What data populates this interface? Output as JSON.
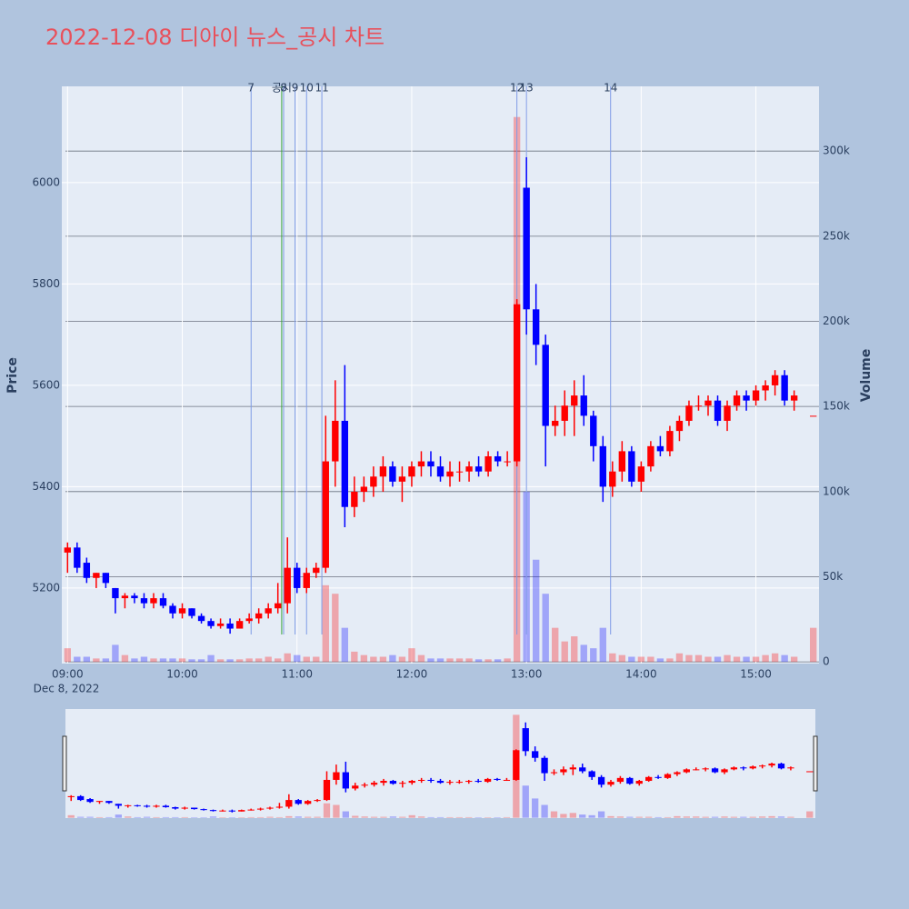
{
  "chart_data": {
    "type": "candlestick",
    "title": "2022-12-08 디아이 뉴스_공시 차트",
    "y_label": "Price",
    "y2_label": "Volume",
    "x_date_label": "Dec 8, 2022",
    "increasing_color": "#ff0000",
    "decreasing_color": "#0000ff",
    "x": [
      "2022-12-08 09:00",
      "2022-12-08 09:05",
      "2022-12-08 09:10",
      "2022-12-08 09:15",
      "2022-12-08 09:20",
      "2022-12-08 09:25",
      "2022-12-08 09:30",
      "2022-12-08 09:35",
      "2022-12-08 09:40",
      "2022-12-08 09:45",
      "2022-12-08 09:50",
      "2022-12-08 09:55",
      "2022-12-08 10:00",
      "2022-12-08 10:05",
      "2022-12-08 10:10",
      "2022-12-08 10:15",
      "2022-12-08 10:20",
      "2022-12-08 10:25",
      "2022-12-08 10:30",
      "2022-12-08 10:35",
      "2022-12-08 10:40",
      "2022-12-08 10:45",
      "2022-12-08 10:50",
      "2022-12-08 10:55",
      "2022-12-08 11:00",
      "2022-12-08 11:05",
      "2022-12-08 11:10",
      "2022-12-08 11:15",
      "2022-12-08 11:20",
      "2022-12-08 11:25",
      "2022-12-08 11:30",
      "2022-12-08 11:35",
      "2022-12-08 11:40",
      "2022-12-08 11:45",
      "2022-12-08 11:50",
      "2022-12-08 11:55",
      "2022-12-08 12:00",
      "2022-12-08 12:05",
      "2022-12-08 12:10",
      "2022-12-08 12:15",
      "2022-12-08 12:20",
      "2022-12-08 12:25",
      "2022-12-08 12:30",
      "2022-12-08 12:35",
      "2022-12-08 12:40",
      "2022-12-08 12:45",
      "2022-12-08 12:50",
      "2022-12-08 12:55",
      "2022-12-08 13:00",
      "2022-12-08 13:05",
      "2022-12-08 13:10",
      "2022-12-08 13:15",
      "2022-12-08 13:20",
      "2022-12-08 13:25",
      "2022-12-08 13:30",
      "2022-12-08 13:35",
      "2022-12-08 13:40",
      "2022-12-08 13:45",
      "2022-12-08 13:50",
      "2022-12-08 13:55",
      "2022-12-08 14:00",
      "2022-12-08 14:05",
      "2022-12-08 14:10",
      "2022-12-08 14:15",
      "2022-12-08 14:20",
      "2022-12-08 14:25",
      "2022-12-08 14:30",
      "2022-12-08 14:35",
      "2022-12-08 14:40",
      "2022-12-08 14:45",
      "2022-12-08 14:50",
      "2022-12-08 14:55",
      "2022-12-08 15:00",
      "2022-12-08 15:05",
      "2022-12-08 15:10",
      "2022-12-08 15:15",
      "2022-12-08 15:20",
      "2022-12-08 15:30"
    ],
    "open": [
      5270,
      5280,
      5250,
      5220,
      5230,
      5200,
      5180,
      5185,
      5180,
      5170,
      5180,
      5165,
      5150,
      5160,
      5145,
      5135,
      5125,
      5130,
      5120,
      5135,
      5140,
      5150,
      5160,
      5170,
      5240,
      5200,
      5230,
      5240,
      5450,
      5530,
      5360,
      5390,
      5400,
      5420,
      5440,
      5410,
      5420,
      5440,
      5450,
      5440,
      5420,
      5430,
      5430,
      5440,
      5430,
      5460,
      5450,
      5450,
      5990,
      5750,
      5680,
      5520,
      5530,
      5560,
      5580,
      5540,
      5480,
      5400,
      5430,
      5470,
      5410,
      5440,
      5480,
      5470,
      5510,
      5530,
      5560,
      5560,
      5570,
      5530,
      5560,
      5580,
      5570,
      5590,
      5600,
      5620,
      5570,
      5540
    ],
    "high": [
      5290,
      5290,
      5260,
      5230,
      5230,
      5200,
      5190,
      5190,
      5190,
      5190,
      5190,
      5170,
      5170,
      5160,
      5150,
      5140,
      5140,
      5140,
      5140,
      5150,
      5160,
      5170,
      5210,
      5300,
      5250,
      5240,
      5250,
      5540,
      5610,
      5640,
      5420,
      5420,
      5440,
      5460,
      5450,
      5440,
      5450,
      5470,
      5470,
      5460,
      5450,
      5450,
      5450,
      5460,
      5470,
      5470,
      5470,
      5770,
      6050,
      5800,
      5700,
      5560,
      5590,
      5610,
      5620,
      5550,
      5500,
      5450,
      5490,
      5480,
      5450,
      5490,
      5500,
      5520,
      5540,
      5570,
      5580,
      5580,
      5580,
      5570,
      5590,
      5590,
      5600,
      5610,
      5630,
      5630,
      5590,
      5540
    ],
    "low": [
      5230,
      5230,
      5210,
      5200,
      5200,
      5150,
      5160,
      5170,
      5160,
      5160,
      5160,
      5140,
      5140,
      5140,
      5130,
      5120,
      5120,
      5110,
      5120,
      5130,
      5130,
      5140,
      5150,
      5150,
      5190,
      5190,
      5220,
      5230,
      5400,
      5320,
      5340,
      5370,
      5380,
      5390,
      5400,
      5370,
      5400,
      5420,
      5420,
      5410,
      5400,
      5410,
      5410,
      5420,
      5420,
      5440,
      5440,
      5440,
      5700,
      5640,
      5440,
      5500,
      5500,
      5500,
      5520,
      5450,
      5370,
      5380,
      5410,
      5400,
      5390,
      5430,
      5460,
      5460,
      5490,
      5520,
      5550,
      5540,
      5520,
      5510,
      5550,
      5550,
      5560,
      5570,
      5580,
      5560,
      5550,
      5540
    ],
    "close": [
      5280,
      5240,
      5220,
      5230,
      5210,
      5180,
      5185,
      5180,
      5170,
      5180,
      5165,
      5150,
      5160,
      5145,
      5135,
      5125,
      5130,
      5120,
      5135,
      5140,
      5150,
      5160,
      5170,
      5240,
      5200,
      5230,
      5240,
      5450,
      5530,
      5360,
      5390,
      5400,
      5420,
      5440,
      5410,
      5420,
      5440,
      5450,
      5440,
      5420,
      5430,
      5430,
      5440,
      5430,
      5460,
      5450,
      5450,
      5760,
      5750,
      5680,
      5520,
      5530,
      5560,
      5580,
      5540,
      5480,
      5400,
      5430,
      5470,
      5410,
      5440,
      5480,
      5470,
      5510,
      5530,
      5560,
      5560,
      5570,
      5530,
      5560,
      5580,
      5570,
      5590,
      5600,
      5620,
      5570,
      5580,
      5540
    ],
    "volume": [
      8000,
      3000,
      3000,
      2000,
      2000,
      10000,
      4000,
      2000,
      3000,
      2000,
      2000,
      2000,
      2000,
      1500,
      1500,
      4000,
      1500,
      1500,
      1500,
      2000,
      2000,
      3000,
      2000,
      5000,
      4000,
      3000,
      3000,
      45000,
      40000,
      20000,
      6000,
      4000,
      3000,
      3000,
      4000,
      3000,
      8000,
      4000,
      2000,
      2000,
      2000,
      2000,
      2000,
      1500,
      1500,
      1500,
      2000,
      320000,
      100000,
      60000,
      40000,
      20000,
      12000,
      15000,
      10000,
      8000,
      20000,
      5000,
      4000,
      3000,
      3000,
      3000,
      2000,
      2000,
      5000,
      4000,
      4000,
      3000,
      3000,
      4000,
      3000,
      3000,
      3000,
      4000,
      5000,
      4000,
      3000,
      20000
    ],
    "xlim": [
      "2022-12-08 08:57",
      "2022-12-08 15:33"
    ],
    "xticks": [
      {
        "value": "2022-12-08 09:00",
        "label": "09:00"
      },
      {
        "value": "2022-12-08 10:00",
        "label": "10:00"
      },
      {
        "value": "2022-12-08 11:00",
        "label": "11:00"
      },
      {
        "value": "2022-12-08 12:00",
        "label": "12:00"
      },
      {
        "value": "2022-12-08 13:00",
        "label": "13:00"
      },
      {
        "value": "2022-12-08 14:00",
        "label": "14:00"
      },
      {
        "value": "2022-12-08 15:00",
        "label": "15:00"
      }
    ],
    "ylim": [
      5051,
      6190
    ],
    "yticks": [
      5200,
      5400,
      5600,
      5800,
      6000
    ],
    "y2lim": [
      -1000,
      338000
    ],
    "y2ticks": [
      0,
      {
        "value": 50000,
        "label": "50k"
      },
      {
        "value": 100000,
        "label": "100k"
      },
      {
        "value": 150000,
        "label": "150k"
      },
      {
        "value": 200000,
        "label": "200k"
      },
      {
        "value": 250000,
        "label": "250k"
      },
      {
        "value": 300000,
        "label": "300k"
      }
    ],
    "vlines": [
      {
        "x": "2022-12-08 10:36",
        "label": "7",
        "color": "#7f9be6"
      },
      {
        "x": "2022-12-08 10:52",
        "label": "공시",
        "color": "#3aa63a"
      },
      {
        "x": "2022-12-08 10:53",
        "label": "8",
        "color": "#7f9be6"
      },
      {
        "x": "2022-12-08 10:59",
        "label": "9",
        "color": "#7f9be6"
      },
      {
        "x": "2022-12-08 11:05",
        "label": "10",
        "color": "#7f9be6"
      },
      {
        "x": "2022-12-08 11:13",
        "label": "11",
        "color": "#7f9be6"
      },
      {
        "x": "2022-12-08 12:55",
        "label": "12",
        "color": "#7f9be6"
      },
      {
        "x": "2022-12-08 13:00",
        "label": "13",
        "color": "#7f9be6"
      },
      {
        "x": "2022-12-08 13:44",
        "label": "14",
        "color": "#7f9be6"
      }
    ],
    "grid": true,
    "rangeslider": true
  }
}
